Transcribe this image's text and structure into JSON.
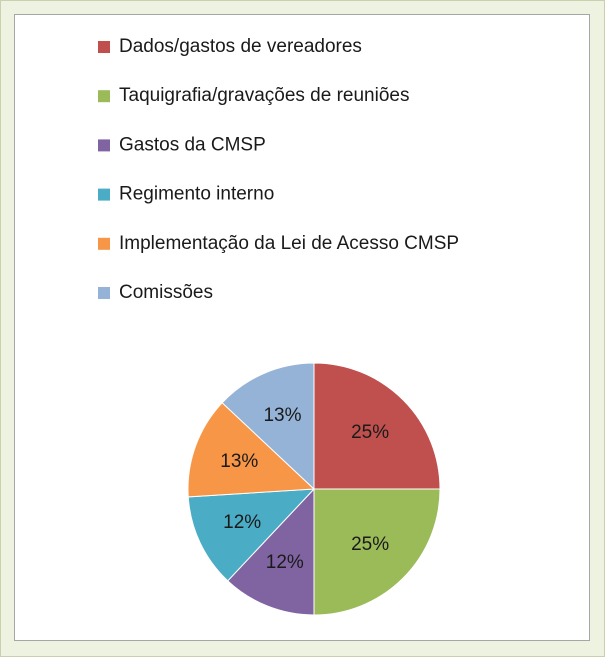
{
  "chart_data": {
    "type": "pie",
    "categories": [
      "Dados/gastos de vereadores",
      "Taquigrafia/gravações de reuniões",
      "Gastos da CMSP",
      "Regimento interno",
      "Implementação da Lei de Acesso CMSP",
      "Comissões"
    ],
    "values": [
      25,
      25,
      12,
      12,
      13,
      13
    ],
    "value_labels": [
      "25%",
      "25%",
      "12%",
      "12%",
      "13%",
      "13%"
    ],
    "colors": [
      "#c0504d",
      "#9bbb59",
      "#8064a2",
      "#4bacc6",
      "#f79646",
      "#95b3d7"
    ],
    "legend": "top"
  }
}
